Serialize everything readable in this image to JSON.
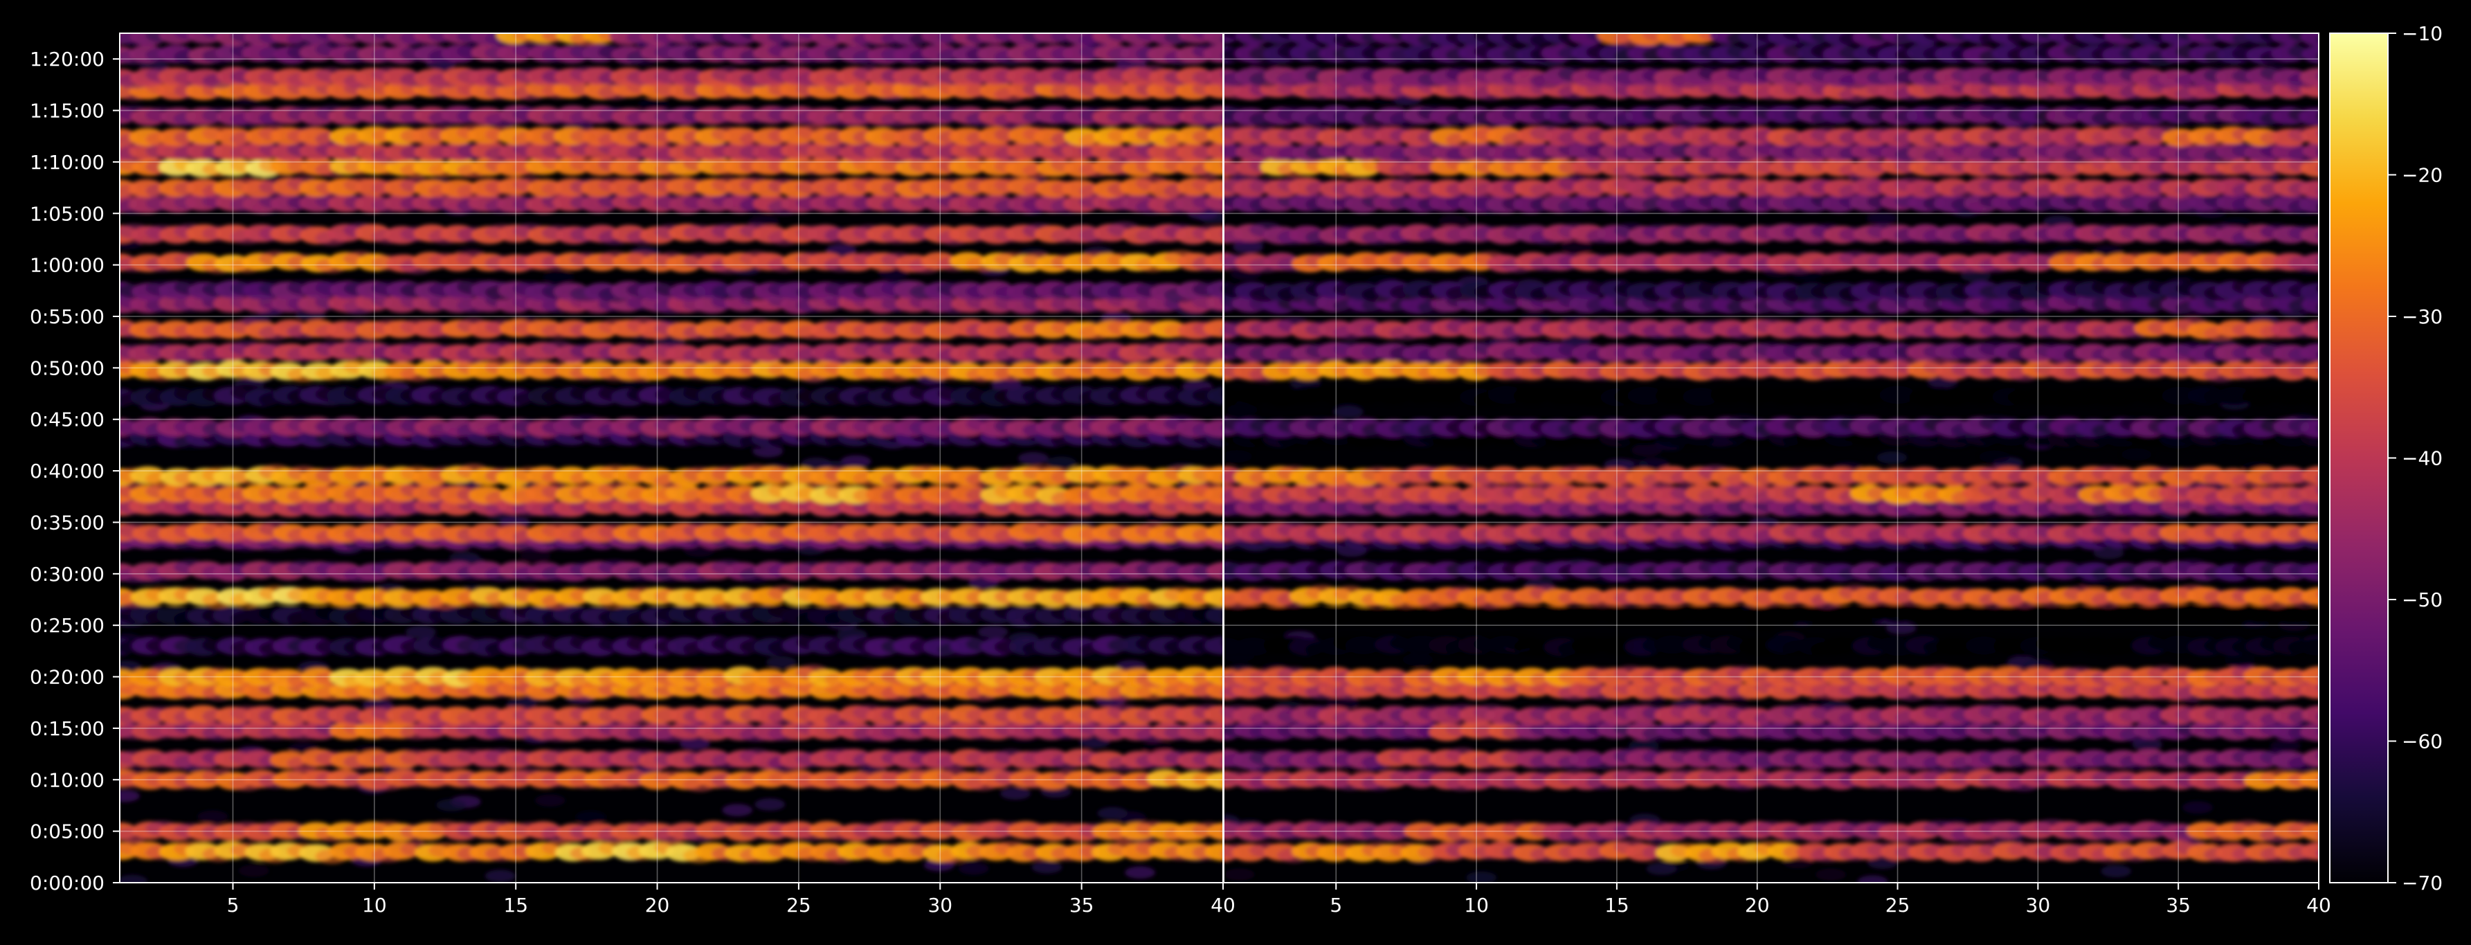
{
  "chart_data": {
    "type": "heatmap",
    "colormap": "inferno",
    "background": "#000000",
    "foreground": "#ffffff",
    "grid": true,
    "panels": [
      {
        "name": "left",
        "x_range": [
          1,
          40
        ],
        "y_range": [
          0,
          4950
        ],
        "x_ticks": [
          5,
          10,
          15,
          20,
          25,
          30,
          35,
          40
        ],
        "y_ticks": [
          {
            "value": 0,
            "label": "0:00:00"
          },
          {
            "value": 300,
            "label": "0:05:00"
          },
          {
            "value": 600,
            "label": "0:10:00"
          },
          {
            "value": 900,
            "label": "0:15:00"
          },
          {
            "value": 1200,
            "label": "0:20:00"
          },
          {
            "value": 1500,
            "label": "0:25:00"
          },
          {
            "value": 1800,
            "label": "0:30:00"
          },
          {
            "value": 2100,
            "label": "0:35:00"
          },
          {
            "value": 2400,
            "label": "0:40:00"
          },
          {
            "value": 2700,
            "label": "0:45:00"
          },
          {
            "value": 3000,
            "label": "0:50:00"
          },
          {
            "value": 3300,
            "label": "0:55:00"
          },
          {
            "value": 3600,
            "label": "1:00:00"
          },
          {
            "value": 3900,
            "label": "1:05:00"
          },
          {
            "value": 4200,
            "label": "1:10:00"
          },
          {
            "value": 4500,
            "label": "1:15:00"
          },
          {
            "value": 4800,
            "label": "1:20:00"
          }
        ],
        "offset": 0
      },
      {
        "name": "right",
        "x_range": [
          1,
          40
        ],
        "y_range": [
          0,
          4950
        ],
        "x_ticks": [
          5,
          10,
          15,
          20,
          25,
          30,
          35,
          40
        ],
        "offset": -9
      }
    ],
    "bands": [
      {
        "y": 180,
        "level": -24,
        "hot": [
          [
            4,
            8,
            -18
          ],
          [
            17,
            21,
            -15
          ]
        ]
      },
      {
        "y": 300,
        "level": -33,
        "hot": [
          [
            8,
            12,
            -24
          ],
          [
            36,
            40,
            -24
          ]
        ]
      },
      {
        "y": 600,
        "level": -30,
        "hot": [
          [
            38,
            40,
            -20
          ]
        ]
      },
      {
        "y": 720,
        "level": -38,
        "hot": [
          [
            7,
            11,
            -30
          ]
        ]
      },
      {
        "y": 885,
        "level": -40,
        "hot": [
          [
            9,
            11,
            -28
          ]
        ]
      },
      {
        "y": 975,
        "level": -33,
        "hot": []
      },
      {
        "y": 1125,
        "level": -26,
        "hot": []
      },
      {
        "y": 1200,
        "level": -22,
        "hot": [
          [
            9,
            13,
            -17
          ]
        ]
      },
      {
        "y": 1380,
        "level": -60,
        "hot": []
      },
      {
        "y": 1560,
        "level": -64,
        "hot": []
      },
      {
        "y": 1665,
        "level": -21,
        "hot": [
          [
            4,
            7,
            -15
          ]
        ]
      },
      {
        "y": 1815,
        "level": -46,
        "hot": []
      },
      {
        "y": 1995,
        "level": -50,
        "hot": []
      },
      {
        "y": 2040,
        "level": -30,
        "hot": [
          [
            35,
            40,
            -26
          ]
        ]
      },
      {
        "y": 2190,
        "level": -38,
        "hot": []
      },
      {
        "y": 2265,
        "level": -27,
        "hot": [
          [
            24,
            27,
            -18
          ],
          [
            32,
            34,
            -20
          ]
        ]
      },
      {
        "y": 2370,
        "level": -23,
        "hot": [
          [
            2,
            6,
            -19
          ]
        ]
      },
      {
        "y": 2595,
        "level": -60,
        "hot": []
      },
      {
        "y": 2655,
        "level": -46,
        "hot": []
      },
      {
        "y": 2835,
        "level": -62,
        "hot": []
      },
      {
        "y": 2985,
        "level": -24,
        "hot": [
          [
            3,
            10,
            -17
          ]
        ]
      },
      {
        "y": 3090,
        "level": -40,
        "hot": []
      },
      {
        "y": 3225,
        "level": -32,
        "hot": [
          [
            34,
            38,
            -24
          ]
        ]
      },
      {
        "y": 3375,
        "level": -44,
        "hot": []
      },
      {
        "y": 3450,
        "level": -52,
        "hot": []
      },
      {
        "y": 3615,
        "level": -32,
        "hot": [
          [
            4,
            10,
            -22
          ],
          [
            31,
            38,
            -22
          ]
        ]
      },
      {
        "y": 3780,
        "level": -36,
        "hot": []
      },
      {
        "y": 3960,
        "level": -42,
        "hot": []
      },
      {
        "y": 4050,
        "level": -30,
        "hot": []
      },
      {
        "y": 4170,
        "level": -27,
        "hot": [
          [
            3,
            6,
            -15
          ],
          [
            9,
            13,
            -21
          ]
        ]
      },
      {
        "y": 4260,
        "level": -38,
        "hot": []
      },
      {
        "y": 4350,
        "level": -28,
        "hot": [
          [
            9,
            11,
            -22
          ],
          [
            35,
            38,
            -22
          ]
        ]
      },
      {
        "y": 4470,
        "level": -44,
        "hot": []
      },
      {
        "y": 4620,
        "level": -30,
        "hot": []
      },
      {
        "y": 4695,
        "level": -38,
        "hot": []
      },
      {
        "y": 4830,
        "level": -48,
        "hot": []
      },
      {
        "y": 4935,
        "level": -48,
        "hot": [
          [
            15,
            18,
            -22
          ]
        ]
      }
    ],
    "colorbar": {
      "min": -70,
      "max": -10,
      "ticks": [
        {
          "value": -10,
          "label": "−10"
        },
        {
          "value": -20,
          "label": "−20"
        },
        {
          "value": -30,
          "label": "−30"
        },
        {
          "value": -40,
          "label": "−40"
        },
        {
          "value": -50,
          "label": "−50"
        },
        {
          "value": -60,
          "label": "−60"
        },
        {
          "value": -70,
          "label": "−70"
        }
      ]
    }
  }
}
